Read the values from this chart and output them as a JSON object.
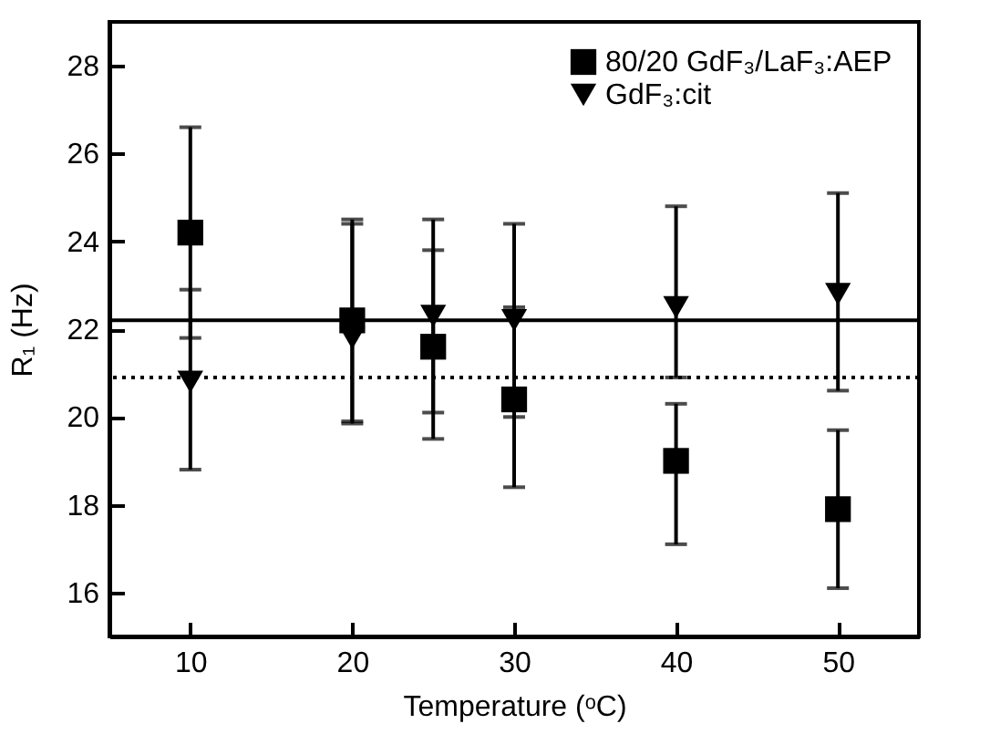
{
  "chart_data": {
    "type": "scatter",
    "xlabel": "Temperature (ᵒC)",
    "ylabel": "R₁ (Hz)",
    "x": [
      10,
      20,
      25,
      30,
      40,
      50
    ],
    "xlim": [
      5,
      55
    ],
    "xticks": [
      10,
      20,
      30,
      40,
      50
    ],
    "ylim": [
      15,
      29
    ],
    "yticks": [
      16,
      18,
      20,
      22,
      24,
      26,
      28
    ],
    "series": [
      {
        "name": "80/20 GdF₃/LaF₃:AEP",
        "color": "#000000",
        "marker": "square",
        "values": [
          24.2,
          22.2,
          21.6,
          20.4,
          19.0,
          17.9
        ],
        "errors": [
          [
            21.8,
            26.6
          ],
          [
            19.9,
            24.5
          ],
          [
            19.5,
            23.8
          ],
          [
            18.4,
            22.5
          ],
          [
            17.1,
            20.3
          ],
          [
            16.1,
            19.7
          ]
        ]
      },
      {
        "name": "GdF₃:cit",
        "color": "#000000",
        "marker": "triangle",
        "values": [
          20.8,
          21.8,
          22.3,
          22.2,
          22.5,
          22.8
        ],
        "errors": [
          [
            18.8,
            22.9
          ],
          [
            19.85,
            24.4
          ],
          [
            20.1,
            24.5
          ],
          [
            20.0,
            24.4
          ],
          [
            20.9,
            24.8
          ],
          [
            20.6,
            25.1
          ]
        ]
      }
    ],
    "ref_lines": [
      {
        "axis": "y",
        "value": 22.2,
        "color": "#000000",
        "line_style": "solid"
      },
      {
        "axis": "y",
        "value": 20.9,
        "color": "#000000",
        "line_style": "dotted"
      }
    ],
    "grid": false,
    "legend": "top right"
  }
}
